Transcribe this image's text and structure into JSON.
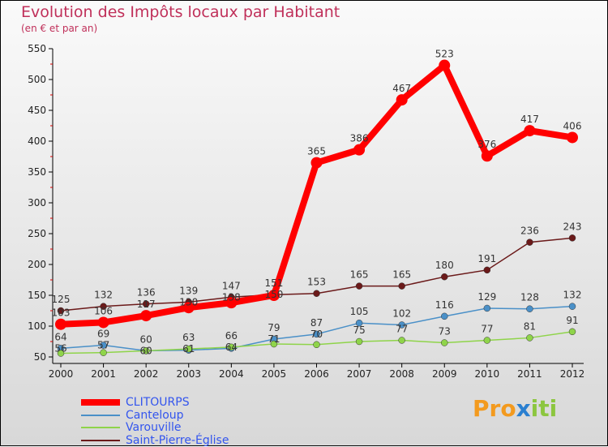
{
  "chart_data": {
    "type": "line",
    "title": "Evolution des Impôts locaux par Habitant",
    "subtitle": "(en € et par an)",
    "x": [
      2000,
      2001,
      2002,
      2003,
      2004,
      2005,
      2006,
      2007,
      2008,
      2009,
      2010,
      2011,
      2012
    ],
    "ylim": [
      50,
      550
    ],
    "yticks": [
      50,
      100,
      150,
      200,
      250,
      300,
      350,
      400,
      450,
      500,
      550
    ],
    "grid": false,
    "legend_position": "bottom-left",
    "series": [
      {
        "name": "CLITOURPS",
        "color": "#ff0000",
        "values": [
          103,
          106,
          117,
          130,
          138,
          150,
          365,
          386,
          467,
          523,
          376,
          417,
          406
        ]
      },
      {
        "name": "Canteloup",
        "color": "#4a90c8",
        "values": [
          64,
          69,
          60,
          61,
          64,
          79,
          87,
          105,
          102,
          116,
          129,
          128,
          132
        ]
      },
      {
        "name": "Varouville",
        "color": "#8fd44a",
        "values": [
          56,
          57,
          60,
          63,
          66,
          71,
          70,
          75,
          77,
          73,
          77,
          81,
          91
        ]
      },
      {
        "name": "Saint-Pierre-Église",
        "color": "#6b1a1a",
        "values": [
          125,
          132,
          136,
          139,
          147,
          151,
          153,
          165,
          165,
          180,
          191,
          236,
          243
        ]
      }
    ]
  },
  "logo": "Proxiti"
}
